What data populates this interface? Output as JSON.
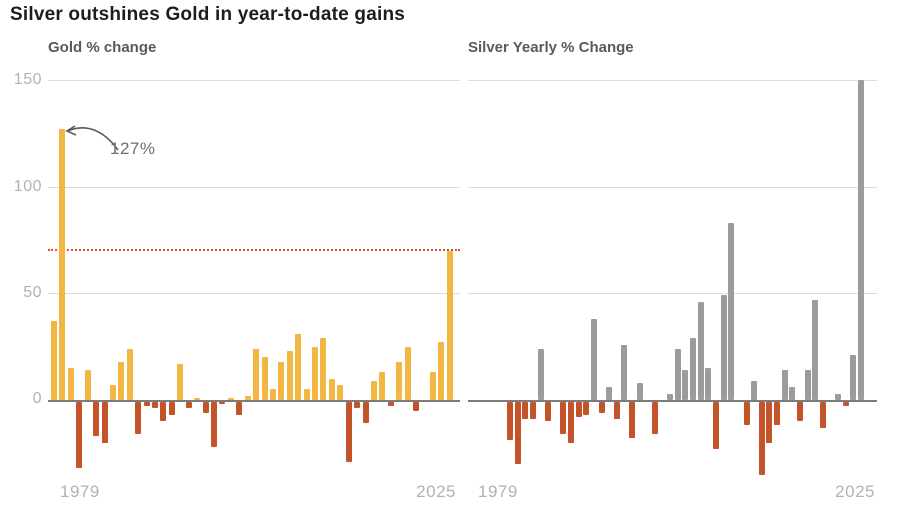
{
  "title": "Silver outshines Gold in year-to-date gains",
  "y_axis_ticks": [
    "150",
    "100",
    "50",
    "0"
  ],
  "chart_data": [
    {
      "type": "bar",
      "title": "Gold % change",
      "x_tick_labels": [
        "1979",
        "2025"
      ],
      "yticks": [
        0,
        50,
        100,
        150
      ],
      "ylim": [
        -40,
        150
      ],
      "grid": "horizontal",
      "legend_position": "none",
      "positive_color": "#F1B742",
      "negative_color": "#C5532A",
      "reference_line": {
        "value": 70,
        "style": "dotted",
        "color": "#DE5230"
      },
      "annotation": {
        "text": "127%",
        "year": 1979,
        "value": 127
      },
      "years": [
        1978,
        1979,
        1980,
        1981,
        1982,
        1983,
        1984,
        1985,
        1986,
        1987,
        1988,
        1989,
        1990,
        1991,
        1992,
        1993,
        1994,
        1995,
        1996,
        1997,
        1998,
        1999,
        2000,
        2001,
        2002,
        2003,
        2004,
        2005,
        2006,
        2007,
        2008,
        2009,
        2010,
        2011,
        2012,
        2013,
        2014,
        2015,
        2016,
        2017,
        2018,
        2019,
        2020,
        2021,
        2022,
        2023,
        2024,
        2025
      ],
      "values": [
        37,
        127,
        15,
        -31,
        14,
        -16,
        -19,
        7,
        18,
        24,
        -15,
        -2,
        -3,
        -9,
        -6,
        17,
        -3,
        1,
        -5,
        -21,
        -1,
        1,
        -6,
        2,
        24,
        20,
        5,
        18,
        23,
        31,
        5,
        25,
        29,
        10,
        7,
        -28,
        -3,
        -10,
        9,
        13,
        -2,
        18,
        25,
        -4,
        0,
        13,
        27,
        70
      ]
    },
    {
      "type": "bar",
      "title": "Silver Yearly % Change",
      "x_tick_labels": [
        "1979",
        "2025"
      ],
      "yticks": [
        0,
        50,
        100,
        150
      ],
      "ylim": [
        -40,
        150
      ],
      "grid": "horizontal",
      "legend_position": "none",
      "positive_color": "#9C9C9C",
      "negative_color": "#C5532A",
      "years": [
        1979,
        1980,
        1981,
        1982,
        1983,
        1984,
        1985,
        1986,
        1987,
        1988,
        1989,
        1990,
        1991,
        1992,
        1993,
        1994,
        1995,
        1996,
        1997,
        1998,
        1999,
        2000,
        2001,
        2002,
        2003,
        2004,
        2005,
        2006,
        2007,
        2008,
        2009,
        2010,
        2011,
        2012,
        2013,
        2014,
        2015,
        2016,
        2017,
        2018,
        2019,
        2020,
        2021,
        2022,
        2023,
        2024,
        2025
      ],
      "values": [
        -18,
        -29,
        -8,
        -8,
        24,
        -9,
        0,
        -15,
        -19,
        -7,
        -6,
        38,
        -5,
        6,
        -8,
        26,
        -17,
        8,
        0,
        -15,
        0,
        3,
        24,
        14,
        29,
        46,
        15,
        -22,
        49,
        83,
        0,
        -11,
        9,
        -34,
        -19,
        -11,
        14,
        6,
        -9,
        14,
        47,
        -12,
        0,
        3,
        -2,
        21,
        150
      ]
    }
  ]
}
